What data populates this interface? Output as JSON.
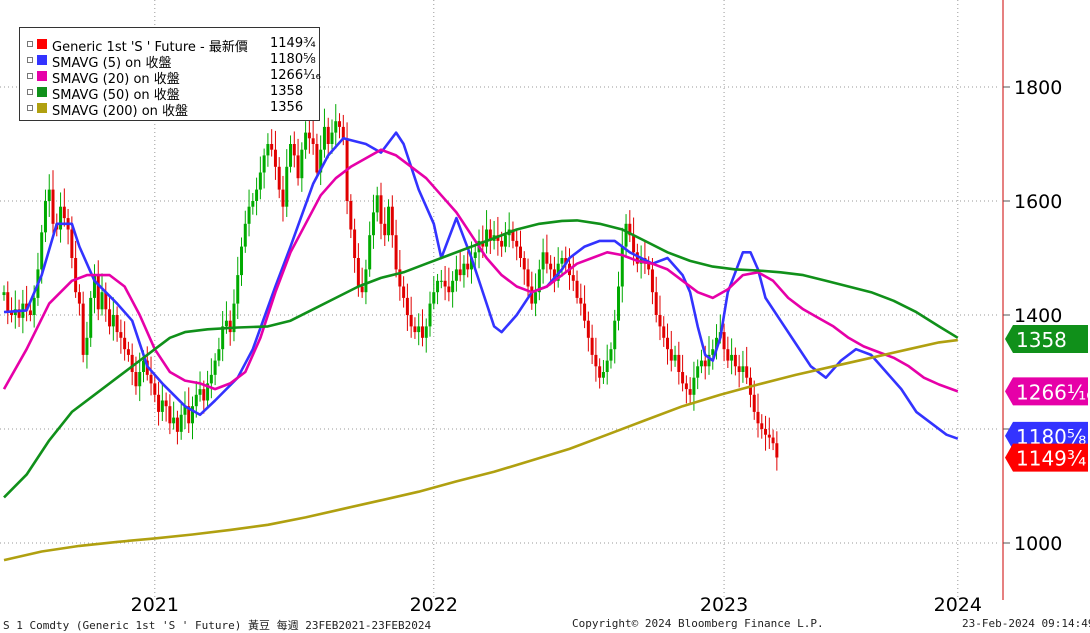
{
  "legend": [
    {
      "name": "Generic 1st 'S ' Future - 最新價",
      "value": "1149¾",
      "color": "#ff0000"
    },
    {
      "name": "SMAVG (5)  on 收盤",
      "value": "1180⅝",
      "color": "#3333ff"
    },
    {
      "name": "SMAVG (20)  on 收盤",
      "value": "1266¹⁄₁₆",
      "color": "#e600a8"
    },
    {
      "name": "SMAVG (50)  on 收盤",
      "value": "1358",
      "color": "#10901a"
    },
    {
      "name": "SMAVG (200)  on 收盤",
      "value": "1356",
      "color": "#b0a010"
    }
  ],
  "footer": {
    "left": "S 1 Comdty (Generic 1st 'S ' Future) 黃豆  每週 23FEB2021-23FEB2024",
    "center": "Copyright© 2024 Bloomberg Finance L.P.",
    "right": "23-Feb-2024 09:14:49"
  },
  "chart_data": {
    "type": "line",
    "y_ticks": [
      "1000",
      "1200",
      "1400",
      "1600",
      "1800"
    ],
    "ylim": [
      970,
      1980
    ],
    "x_labels": [
      {
        "label": "2021",
        "week": 40
      },
      {
        "label": "2022",
        "week": 114
      },
      {
        "label": "2023",
        "week": 191
      },
      {
        "label": "2024",
        "week": 253
      }
    ],
    "last_price_tags": [
      {
        "text": "1358",
        "value": 1358,
        "color": "#10901a"
      },
      {
        "text": "1266¹⁄₁₆",
        "value": 1266,
        "color": "#e600a8"
      },
      {
        "text": "1180⅝",
        "value": 1188,
        "color": "#3333ff"
      },
      {
        "text": "1149¾",
        "value": 1149.75,
        "color": "#ff0000"
      }
    ],
    "ohlc": {
      "name": "Generic 1st 'S ' Future",
      "up_color": "#00aa00",
      "down_color": "#e00000",
      "closes": [
        1440,
        1405,
        1400,
        1410,
        1395,
        1420,
        1408,
        1400,
        1430,
        1480,
        1545,
        1600,
        1620,
        1560,
        1550,
        1590,
        1570,
        1550,
        1500,
        1440,
        1420,
        1330,
        1360,
        1430,
        1470,
        1410,
        1440,
        1410,
        1380,
        1400,
        1370,
        1360,
        1340,
        1330,
        1300,
        1275,
        1300,
        1320,
        1295,
        1280,
        1260,
        1230,
        1250,
        1240,
        1210,
        1220,
        1195,
        1225,
        1240,
        1210,
        1240,
        1260,
        1270,
        1250,
        1280,
        1295,
        1320,
        1340,
        1380,
        1390,
        1370,
        1420,
        1470,
        1520,
        1560,
        1590,
        1600,
        1620,
        1650,
        1680,
        1700,
        1690,
        1660,
        1620,
        1590,
        1660,
        1700,
        1680,
        1640,
        1690,
        1720,
        1710,
        1700,
        1650,
        1690,
        1730,
        1700,
        1720,
        1740,
        1730,
        1710,
        1600,
        1550,
        1500,
        1450,
        1440,
        1480,
        1540,
        1580,
        1610,
        1560,
        1540,
        1590,
        1540,
        1480,
        1450,
        1430,
        1400,
        1380,
        1370,
        1380,
        1360,
        1380,
        1420,
        1440,
        1460,
        1460,
        1450,
        1440,
        1460,
        1480,
        1470,
        1490,
        1480,
        1500,
        1510,
        1530,
        1520,
        1550,
        1530,
        1540,
        1530,
        1520,
        1540,
        1550,
        1530,
        1520,
        1500,
        1480,
        1450,
        1420,
        1440,
        1480,
        1510,
        1490,
        1480,
        1460,
        1490,
        1500,
        1490,
        1470,
        1460,
        1430,
        1420,
        1390,
        1360,
        1330,
        1310,
        1290,
        1300,
        1320,
        1340,
        1390,
        1450,
        1520,
        1560,
        1540,
        1510,
        1490,
        1500,
        1490,
        1480,
        1440,
        1400,
        1380,
        1360,
        1340,
        1320,
        1330,
        1300,
        1280,
        1270,
        1260,
        1290,
        1310,
        1320,
        1310,
        1330,
        1340,
        1360,
        1370,
        1340,
        1320,
        1330,
        1310,
        1300,
        1310,
        1290,
        1260,
        1230,
        1210,
        1200,
        1190,
        1185,
        1175,
        1150
      ]
    },
    "series": [
      {
        "name": "SMAVG (5)",
        "color": "#3333ff",
        "points": [
          [
            0,
            1405
          ],
          [
            6,
            1408
          ],
          [
            10,
            1470
          ],
          [
            14,
            1560
          ],
          [
            18,
            1560
          ],
          [
            20,
            1520
          ],
          [
            24,
            1460
          ],
          [
            30,
            1420
          ],
          [
            34,
            1390
          ],
          [
            38,
            1310
          ],
          [
            42,
            1280
          ],
          [
            48,
            1240
          ],
          [
            52,
            1225
          ],
          [
            56,
            1250
          ],
          [
            62,
            1290
          ],
          [
            66,
            1340
          ],
          [
            72,
            1450
          ],
          [
            76,
            1520
          ],
          [
            82,
            1630
          ],
          [
            86,
            1680
          ],
          [
            90,
            1710
          ],
          [
            96,
            1700
          ],
          [
            100,
            1685
          ],
          [
            104,
            1720
          ],
          [
            106,
            1700
          ],
          [
            110,
            1620
          ],
          [
            114,
            1560
          ],
          [
            116,
            1500
          ],
          [
            120,
            1570
          ],
          [
            124,
            1500
          ],
          [
            128,
            1420
          ],
          [
            130,
            1380
          ],
          [
            132,
            1370
          ],
          [
            136,
            1400
          ],
          [
            140,
            1440
          ],
          [
            144,
            1450
          ],
          [
            148,
            1480
          ],
          [
            150,
            1500
          ],
          [
            154,
            1520
          ],
          [
            158,
            1530
          ],
          [
            162,
            1530
          ],
          [
            166,
            1510
          ],
          [
            172,
            1490
          ],
          [
            176,
            1500
          ],
          [
            180,
            1470
          ],
          [
            182,
            1440
          ],
          [
            184,
            1380
          ],
          [
            186,
            1330
          ],
          [
            188,
            1320
          ],
          [
            190,
            1360
          ],
          [
            192,
            1440
          ],
          [
            196,
            1510
          ],
          [
            198,
            1510
          ],
          [
            200,
            1480
          ],
          [
            202,
            1430
          ],
          [
            206,
            1390
          ],
          [
            210,
            1350
          ],
          [
            214,
            1310
          ],
          [
            218,
            1290
          ],
          [
            222,
            1320
          ],
          [
            226,
            1340
          ],
          [
            230,
            1330
          ],
          [
            234,
            1300
          ],
          [
            238,
            1270
          ],
          [
            242,
            1230
          ],
          [
            246,
            1210
          ],
          [
            250,
            1190
          ],
          [
            253,
            1183
          ]
        ]
      },
      {
        "name": "SMAVG (20)",
        "color": "#e600a8",
        "points": [
          [
            0,
            1270
          ],
          [
            6,
            1340
          ],
          [
            12,
            1420
          ],
          [
            18,
            1460
          ],
          [
            22,
            1470
          ],
          [
            28,
            1470
          ],
          [
            32,
            1450
          ],
          [
            36,
            1400
          ],
          [
            40,
            1340
          ],
          [
            44,
            1300
          ],
          [
            48,
            1285
          ],
          [
            52,
            1280
          ],
          [
            56,
            1270
          ],
          [
            60,
            1280
          ],
          [
            64,
            1300
          ],
          [
            68,
            1360
          ],
          [
            72,
            1440
          ],
          [
            76,
            1510
          ],
          [
            80,
            1560
          ],
          [
            84,
            1610
          ],
          [
            88,
            1640
          ],
          [
            92,
            1660
          ],
          [
            96,
            1675
          ],
          [
            100,
            1690
          ],
          [
            104,
            1680
          ],
          [
            108,
            1660
          ],
          [
            112,
            1640
          ],
          [
            116,
            1610
          ],
          [
            120,
            1580
          ],
          [
            124,
            1540
          ],
          [
            128,
            1500
          ],
          [
            132,
            1470
          ],
          [
            136,
            1450
          ],
          [
            140,
            1440
          ],
          [
            144,
            1450
          ],
          [
            148,
            1470
          ],
          [
            152,
            1490
          ],
          [
            156,
            1500
          ],
          [
            160,
            1510
          ],
          [
            164,
            1505
          ],
          [
            168,
            1495
          ],
          [
            172,
            1490
          ],
          [
            176,
            1480
          ],
          [
            180,
            1460
          ],
          [
            184,
            1440
          ],
          [
            188,
            1430
          ],
          [
            192,
            1445
          ],
          [
            196,
            1470
          ],
          [
            200,
            1475
          ],
          [
            204,
            1460
          ],
          [
            208,
            1430
          ],
          [
            212,
            1410
          ],
          [
            216,
            1395
          ],
          [
            220,
            1380
          ],
          [
            224,
            1360
          ],
          [
            228,
            1345
          ],
          [
            232,
            1335
          ],
          [
            236,
            1325
          ],
          [
            240,
            1310
          ],
          [
            244,
            1290
          ],
          [
            248,
            1278
          ],
          [
            253,
            1266
          ]
        ]
      },
      {
        "name": "SMAVG (50)",
        "color": "#10901a",
        "points": [
          [
            0,
            1080
          ],
          [
            6,
            1120
          ],
          [
            12,
            1180
          ],
          [
            18,
            1230
          ],
          [
            24,
            1260
          ],
          [
            30,
            1290
          ],
          [
            36,
            1320
          ],
          [
            40,
            1340
          ],
          [
            44,
            1360
          ],
          [
            48,
            1370
          ],
          [
            54,
            1375
          ],
          [
            62,
            1378
          ],
          [
            70,
            1380
          ],
          [
            76,
            1390
          ],
          [
            82,
            1410
          ],
          [
            88,
            1430
          ],
          [
            94,
            1450
          ],
          [
            100,
            1465
          ],
          [
            106,
            1475
          ],
          [
            112,
            1490
          ],
          [
            118,
            1505
          ],
          [
            124,
            1520
          ],
          [
            130,
            1535
          ],
          [
            136,
            1550
          ],
          [
            142,
            1560
          ],
          [
            148,
            1565
          ],
          [
            152,
            1566
          ],
          [
            158,
            1560
          ],
          [
            164,
            1550
          ],
          [
            170,
            1530
          ],
          [
            176,
            1510
          ],
          [
            182,
            1495
          ],
          [
            188,
            1485
          ],
          [
            194,
            1480
          ],
          [
            200,
            1478
          ],
          [
            206,
            1475
          ],
          [
            212,
            1470
          ],
          [
            218,
            1460
          ],
          [
            224,
            1450
          ],
          [
            230,
            1440
          ],
          [
            236,
            1425
          ],
          [
            242,
            1405
          ],
          [
            248,
            1380
          ],
          [
            253,
            1360
          ]
        ]
      },
      {
        "name": "SMAVG (200)",
        "color": "#b0a010",
        "points": [
          [
            0,
            970
          ],
          [
            10,
            985
          ],
          [
            20,
            995
          ],
          [
            30,
            1002
          ],
          [
            40,
            1008
          ],
          [
            50,
            1015
          ],
          [
            60,
            1023
          ],
          [
            70,
            1032
          ],
          [
            80,
            1045
          ],
          [
            90,
            1060
          ],
          [
            100,
            1075
          ],
          [
            110,
            1090
          ],
          [
            120,
            1108
          ],
          [
            130,
            1125
          ],
          [
            140,
            1145
          ],
          [
            150,
            1165
          ],
          [
            160,
            1190
          ],
          [
            170,
            1215
          ],
          [
            180,
            1240
          ],
          [
            190,
            1260
          ],
          [
            200,
            1278
          ],
          [
            210,
            1295
          ],
          [
            220,
            1310
          ],
          [
            230,
            1325
          ],
          [
            240,
            1340
          ],
          [
            248,
            1352
          ],
          [
            253,
            1356
          ]
        ]
      }
    ]
  }
}
